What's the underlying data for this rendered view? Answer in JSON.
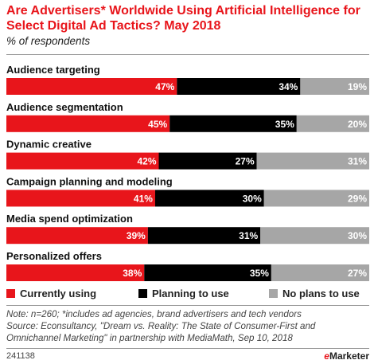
{
  "header": {
    "title": "Are Advertisers* Worldwide Using Artificial Intelligence for Select Digital Ad Tactics? May 2018",
    "subtitle": "% of respondents"
  },
  "chart_data": {
    "type": "bar",
    "stacked": true,
    "orientation": "horizontal",
    "categories": [
      "Audience targeting",
      "Audience segmentation",
      "Dynamic creative",
      "Campaign planning and modeling",
      "Media spend optimization",
      "Personalized offers"
    ],
    "series": [
      {
        "name": "Currently using",
        "values": [
          47,
          45,
          42,
          41,
          39,
          38
        ],
        "color": "#e8151b"
      },
      {
        "name": "Planning to use",
        "values": [
          34,
          35,
          27,
          30,
          31,
          35
        ],
        "color": "#000000"
      },
      {
        "name": "No plans to use",
        "values": [
          19,
          20,
          31,
          29,
          30,
          27
        ],
        "color": "#a6a6a6"
      }
    ],
    "value_suffix": "%",
    "legend_position": "bottom",
    "grid": false
  },
  "footer": {
    "note": "Note: n=260; *includes ad agencies, brand advertisers and tech vendors",
    "source": "Source: Econsultancy, \"Dream vs. Reality: The State of Consumer-First and Omnichannel Marketing\" in partnership with MediaMath, Sep 10, 2018",
    "chart_id": "241138",
    "brand_prefix": "e",
    "brand_rest": "Marketer"
  }
}
